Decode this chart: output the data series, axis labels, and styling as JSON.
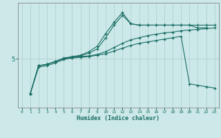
{
  "xlabel": "Humidex (Indice chaleur)",
  "bg_color": "#cce8e8",
  "line_color": "#1a6e65",
  "grid_color": "#aacece",
  "xlim": [
    -0.5,
    23.5
  ],
  "ylim": [
    1.5,
    9.0
  ],
  "yticks": [
    5
  ],
  "xticks": [
    0,
    1,
    2,
    3,
    4,
    5,
    6,
    7,
    8,
    9,
    10,
    11,
    12,
    13,
    14,
    15,
    16,
    17,
    18,
    19,
    20,
    21,
    22,
    23
  ],
  "line1_x": [
    1,
    2,
    3,
    4,
    5,
    6,
    7,
    8,
    9,
    10,
    11,
    12,
    13,
    14,
    15,
    16,
    17,
    18,
    19,
    20,
    21,
    22,
    23
  ],
  "line1_y": [
    2.5,
    4.5,
    4.6,
    4.8,
    5.0,
    5.1,
    5.15,
    5.2,
    5.3,
    5.5,
    5.8,
    6.1,
    6.35,
    6.5,
    6.65,
    6.75,
    6.85,
    6.9,
    7.0,
    7.05,
    7.1,
    7.15,
    7.2
  ],
  "line2_x": [
    1,
    2,
    3,
    4,
    5,
    6,
    7,
    8,
    9,
    10,
    11,
    12,
    13,
    14,
    15,
    16,
    17,
    18,
    19,
    20,
    21,
    22,
    23
  ],
  "line2_y": [
    2.5,
    4.5,
    4.6,
    4.8,
    5.0,
    5.1,
    5.2,
    5.4,
    5.7,
    6.5,
    7.4,
    8.1,
    7.5,
    7.4,
    7.4,
    7.4,
    7.4,
    7.4,
    7.4,
    7.4,
    7.4,
    7.4,
    7.4
  ],
  "line3_x": [
    1,
    2,
    3,
    4,
    5,
    6,
    7,
    8,
    9,
    10,
    11,
    12,
    13,
    14,
    15,
    16,
    17,
    18,
    19,
    20,
    21,
    22
  ],
  "line3_y": [
    2.5,
    4.5,
    4.6,
    4.8,
    5.05,
    5.15,
    5.25,
    5.5,
    5.9,
    6.8,
    7.6,
    8.3,
    7.5,
    7.4,
    7.4,
    7.4,
    7.4,
    7.4,
    7.4,
    7.4,
    7.2,
    7.2
  ],
  "line4_x": [
    1,
    2,
    3,
    4,
    5,
    6,
    7,
    8,
    9,
    10,
    11,
    12,
    13,
    14,
    15,
    16,
    17,
    18,
    19,
    20,
    21,
    22,
    23
  ],
  "line4_y": [
    2.5,
    4.4,
    4.5,
    4.7,
    4.95,
    5.05,
    5.1,
    5.15,
    5.25,
    5.35,
    5.55,
    5.75,
    5.95,
    6.1,
    6.2,
    6.3,
    6.4,
    6.5,
    6.6,
    3.2,
    3.1,
    3.0,
    2.9
  ]
}
